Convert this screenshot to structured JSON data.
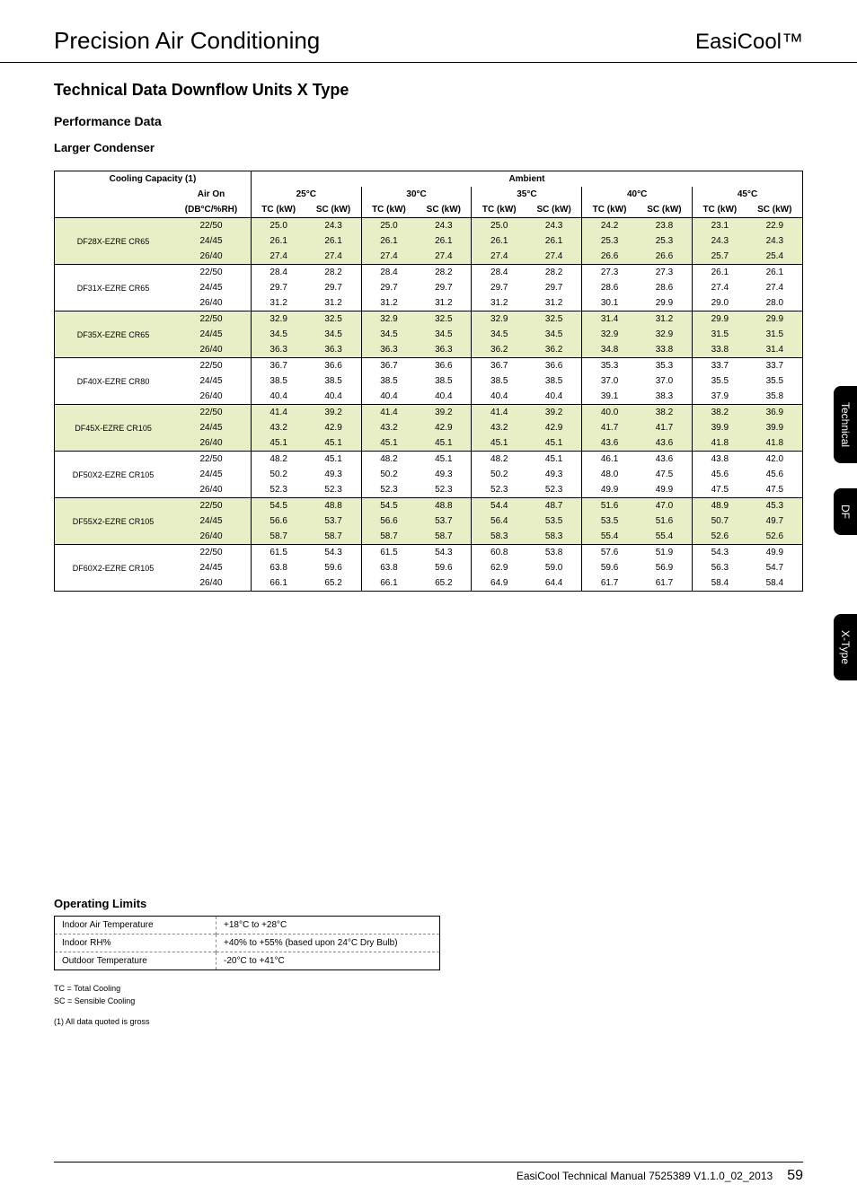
{
  "header": {
    "left": "Precision Air Conditioning",
    "right": "EasiCool™"
  },
  "section_title": "Technical Data Downflow Units X Type",
  "performance_title": "Performance Data",
  "condenser_title": "Larger Condenser",
  "table": {
    "cooling_capacity_label": "Cooling Capacity (1)",
    "ambient_label": "Ambient",
    "air_on_label": "Air On",
    "air_on_unit": "(DB°C/%RH)",
    "tc_label": "TC (kW)",
    "sc_label": "SC (kW)",
    "ambient_temps": [
      "25°C",
      "30°C",
      "35°C",
      "40°C",
      "45°C"
    ],
    "stripe_colors": {
      "a": "#e8efc7",
      "b": "#ffffff"
    },
    "groups": [
      {
        "model": "DF28X-EZRE CR65",
        "stripe": "a",
        "rows": [
          {
            "air_on": "22/50",
            "vals": [
              "25.0",
              "24.3",
              "25.0",
              "24.3",
              "25.0",
              "24.3",
              "24.2",
              "23.8",
              "23.1",
              "22.9"
            ]
          },
          {
            "air_on": "24/45",
            "vals": [
              "26.1",
              "26.1",
              "26.1",
              "26.1",
              "26.1",
              "26.1",
              "25.3",
              "25.3",
              "24.3",
              "24.3"
            ]
          },
          {
            "air_on": "26/40",
            "vals": [
              "27.4",
              "27.4",
              "27.4",
              "27.4",
              "27.4",
              "27.4",
              "26.6",
              "26.6",
              "25.7",
              "25.4"
            ]
          }
        ]
      },
      {
        "model": "DF31X-EZRE CR65",
        "stripe": "b",
        "rows": [
          {
            "air_on": "22/50",
            "vals": [
              "28.4",
              "28.2",
              "28.4",
              "28.2",
              "28.4",
              "28.2",
              "27.3",
              "27.3",
              "26.1",
              "26.1"
            ]
          },
          {
            "air_on": "24/45",
            "vals": [
              "29.7",
              "29.7",
              "29.7",
              "29.7",
              "29.7",
              "29.7",
              "28.6",
              "28.6",
              "27.4",
              "27.4"
            ]
          },
          {
            "air_on": "26/40",
            "vals": [
              "31.2",
              "31.2",
              "31.2",
              "31.2",
              "31.2",
              "31.2",
              "30.1",
              "29.9",
              "29.0",
              "28.0"
            ]
          }
        ]
      },
      {
        "model": "DF35X-EZRE CR65",
        "stripe": "a",
        "rows": [
          {
            "air_on": "22/50",
            "vals": [
              "32.9",
              "32.5",
              "32.9",
              "32.5",
              "32.9",
              "32.5",
              "31.4",
              "31.2",
              "29.9",
              "29.9"
            ]
          },
          {
            "air_on": "24/45",
            "vals": [
              "34.5",
              "34.5",
              "34.5",
              "34.5",
              "34.5",
              "34.5",
              "32.9",
              "32.9",
              "31.5",
              "31.5"
            ]
          },
          {
            "air_on": "26/40",
            "vals": [
              "36.3",
              "36.3",
              "36.3",
              "36.3",
              "36.2",
              "36.2",
              "34.8",
              "33.8",
              "33.8",
              "31.4"
            ]
          }
        ]
      },
      {
        "model": "DF40X-EZRE CR80",
        "stripe": "b",
        "rows": [
          {
            "air_on": "22/50",
            "vals": [
              "36.7",
              "36.6",
              "36.7",
              "36.6",
              "36.7",
              "36.6",
              "35.3",
              "35.3",
              "33.7",
              "33.7"
            ]
          },
          {
            "air_on": "24/45",
            "vals": [
              "38.5",
              "38.5",
              "38.5",
              "38.5",
              "38.5",
              "38.5",
              "37.0",
              "37.0",
              "35.5",
              "35.5"
            ]
          },
          {
            "air_on": "26/40",
            "vals": [
              "40.4",
              "40.4",
              "40.4",
              "40.4",
              "40.4",
              "40.4",
              "39.1",
              "38.3",
              "37.9",
              "35.8"
            ]
          }
        ]
      },
      {
        "model": "DF45X-EZRE CR105",
        "stripe": "a",
        "rows": [
          {
            "air_on": "22/50",
            "vals": [
              "41.4",
              "39.2",
              "41.4",
              "39.2",
              "41.4",
              "39.2",
              "40.0",
              "38.2",
              "38.2",
              "36.9"
            ]
          },
          {
            "air_on": "24/45",
            "vals": [
              "43.2",
              "42.9",
              "43.2",
              "42.9",
              "43.2",
              "42.9",
              "41.7",
              "41.7",
              "39.9",
              "39.9"
            ]
          },
          {
            "air_on": "26/40",
            "vals": [
              "45.1",
              "45.1",
              "45.1",
              "45.1",
              "45.1",
              "45.1",
              "43.6",
              "43.6",
              "41.8",
              "41.8"
            ]
          }
        ]
      },
      {
        "model": "DF50X2-EZRE CR105",
        "stripe": "b",
        "rows": [
          {
            "air_on": "22/50",
            "vals": [
              "48.2",
              "45.1",
              "48.2",
              "45.1",
              "48.2",
              "45.1",
              "46.1",
              "43.6",
              "43.8",
              "42.0"
            ]
          },
          {
            "air_on": "24/45",
            "vals": [
              "50.2",
              "49.3",
              "50.2",
              "49.3",
              "50.2",
              "49.3",
              "48.0",
              "47.5",
              "45.6",
              "45.6"
            ]
          },
          {
            "air_on": "26/40",
            "vals": [
              "52.3",
              "52.3",
              "52.3",
              "52.3",
              "52.3",
              "52.3",
              "49.9",
              "49.9",
              "47.5",
              "47.5"
            ]
          }
        ]
      },
      {
        "model": "DF55X2-EZRE CR105",
        "stripe": "a",
        "rows": [
          {
            "air_on": "22/50",
            "vals": [
              "54.5",
              "48.8",
              "54.5",
              "48.8",
              "54.4",
              "48.7",
              "51.6",
              "47.0",
              "48.9",
              "45.3"
            ]
          },
          {
            "air_on": "24/45",
            "vals": [
              "56.6",
              "53.7",
              "56.6",
              "53.7",
              "56.4",
              "53.5",
              "53.5",
              "51.6",
              "50.7",
              "49.7"
            ]
          },
          {
            "air_on": "26/40",
            "vals": [
              "58.7",
              "58.7",
              "58.7",
              "58.7",
              "58.3",
              "58.3",
              "55.4",
              "55.4",
              "52.6",
              "52.6"
            ]
          }
        ]
      },
      {
        "model": "DF60X2-EZRE CR105",
        "stripe": "b",
        "rows": [
          {
            "air_on": "22/50",
            "vals": [
              "61.5",
              "54.3",
              "61.5",
              "54.3",
              "60.8",
              "53.8",
              "57.6",
              "51.9",
              "54.3",
              "49.9"
            ]
          },
          {
            "air_on": "24/45",
            "vals": [
              "63.8",
              "59.6",
              "63.8",
              "59.6",
              "62.9",
              "59.0",
              "59.6",
              "56.9",
              "56.3",
              "54.7"
            ]
          },
          {
            "air_on": "26/40",
            "vals": [
              "66.1",
              "65.2",
              "66.1",
              "65.2",
              "64.9",
              "64.4",
              "61.7",
              "61.7",
              "58.4",
              "58.4"
            ]
          }
        ]
      }
    ]
  },
  "side_tabs": [
    "Technical",
    "DF",
    "X-Type"
  ],
  "operating_limits": {
    "title": "Operating Limits",
    "rows": [
      {
        "label": "Indoor Air Temperature",
        "value": "+18°C to +28°C"
      },
      {
        "label": "Indoor RH%",
        "value": "+40% to +55% (based upon 24°C Dry Bulb)"
      },
      {
        "label": "Outdoor Temperature",
        "value": "-20°C to +41°C"
      }
    ]
  },
  "footnotes": [
    "TC = Total Cooling",
    "SC = Sensible Cooling",
    "(1) All data quoted is gross"
  ],
  "footer": {
    "text": "EasiCool Technical Manual 7525389 V1.1.0_02_2013",
    "page": "59"
  }
}
